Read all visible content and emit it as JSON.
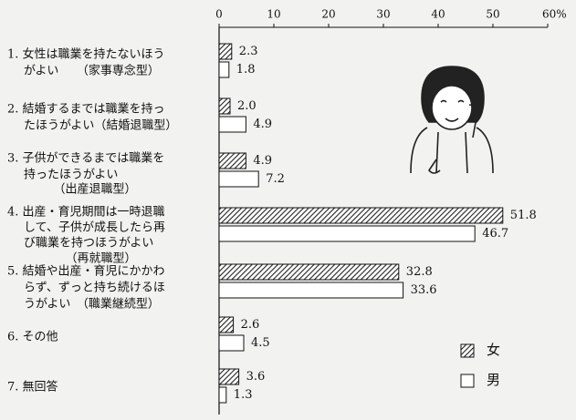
{
  "chart_data": {
    "type": "bar",
    "orientation": "horizontal",
    "categories": [
      [
        "1. 女性は職業を持たないほう",
        "がよい　　（家事専念型）"
      ],
      [
        "2. 結婚するまでは職業を持っ",
        "たほうがよい（結婚退職型）"
      ],
      [
        "3. 子供ができるまでは職業を",
        "持ったほうがよい",
        "　　　（出産退職型）"
      ],
      [
        "4. 出産・育児期間は一時退職",
        "して、子供が成長したら再",
        "び職業を持つほうがよい",
        "　　　　（再就職型）"
      ],
      [
        "5. 結婚や出産・育児にかかわ",
        "らず、ずっと持ち続けるほ",
        "うがよい　（職業継続型）"
      ],
      [
        "6. その他"
      ],
      [
        "7. 無回答"
      ]
    ],
    "series": [
      {
        "name": "女",
        "color": "#444444",
        "pattern": "hatch",
        "values": [
          2.3,
          2.0,
          4.9,
          51.8,
          32.8,
          2.6,
          3.6
        ],
        "value_labels": [
          "2.3",
          "2.0",
          "4.9",
          "51.8",
          "32.8",
          "2.6",
          "3.6"
        ]
      },
      {
        "name": "男",
        "color": "#ffffff",
        "pattern": "none",
        "values": [
          1.8,
          4.9,
          7.2,
          46.7,
          33.6,
          4.5,
          1.3
        ],
        "value_labels": [
          "1.8",
          "4.9",
          "7.2",
          "46.7",
          "33.6",
          "4.5",
          "1.3"
        ]
      }
    ],
    "xlim": [
      0,
      60
    ],
    "xticks": [
      0,
      10,
      20,
      30,
      40,
      50,
      {
        "value": 60,
        "label": "60%"
      }
    ],
    "legend": "lower right"
  }
}
